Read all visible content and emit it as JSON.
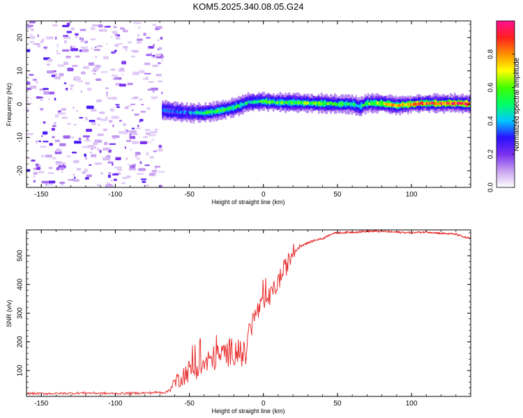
{
  "title": "KOM5.2025.340.08.05.G24",
  "colorbar": {
    "label": "Normalized spectral amplitude",
    "ticks": [
      0.0,
      0.2,
      0.4,
      0.6,
      0.8
    ],
    "tick_labels": [
      "0.0",
      "0.2",
      "0.4",
      "0.6",
      "0.8"
    ],
    "range": [
      0,
      1
    ],
    "stops": [
      "#ffffff",
      "#c8a0f0",
      "#7a30f0",
      "#2a10ff",
      "#00c8ff",
      "#00ff66",
      "#40ff00",
      "#ffff00",
      "#ff9000",
      "#ff2020",
      "#ff1090"
    ]
  },
  "chart_data": [
    {
      "type": "heatmap",
      "xlabel": "Height of straight line (km)",
      "ylabel": "Frequency (Hz)",
      "xlim": [
        -160,
        140
      ],
      "ylim": [
        -25,
        25
      ],
      "xticks": [
        -150,
        -100,
        -50,
        0,
        50,
        100
      ],
      "xtick_labels": [
        "-150",
        "-100",
        "-50",
        "0",
        "50",
        "100"
      ],
      "yticks": [
        -20,
        -10,
        0,
        10,
        20
      ],
      "ytick_labels": [
        "-20",
        "-10",
        "0",
        "10",
        "20"
      ],
      "noise_region_x": [
        -160,
        -68
      ],
      "ridge": {
        "x": [
          -68,
          -60,
          -50,
          -40,
          -30,
          -20,
          -10,
          0,
          10,
          20,
          30,
          40,
          50,
          60,
          65,
          70,
          80,
          90,
          100,
          110,
          120,
          130,
          140
        ],
        "freq": [
          -1.8,
          -2.2,
          -2.6,
          -2.6,
          -2.0,
          -1.0,
          0.6,
          0.8,
          0.5,
          0.5,
          0.3,
          0.2,
          0.0,
          0.0,
          -0.8,
          0.3,
          0.2,
          -0.4,
          0.0,
          0.3,
          0.2,
          0.3,
          0.0
        ],
        "amplitude": [
          0.35,
          0.35,
          0.4,
          0.55,
          0.6,
          0.55,
          0.5,
          0.6,
          0.6,
          0.6,
          0.65,
          0.65,
          0.6,
          0.55,
          0.5,
          0.6,
          0.75,
          0.8,
          0.85,
          0.9,
          0.95,
          0.95,
          0.9
        ]
      }
    },
    {
      "type": "line",
      "xlabel": "Height of straight line (km)",
      "ylabel": "SNR (v/v)",
      "xlim": [
        -160,
        140
      ],
      "ylim": [
        10,
        590
      ],
      "xticks": [
        -150,
        -100,
        -50,
        0,
        50,
        100
      ],
      "xtick_labels": [
        "-150",
        "-100",
        "-50",
        "0",
        "50",
        "100"
      ],
      "yticks": [
        100,
        200,
        300,
        400,
        500
      ],
      "ytick_labels": [
        "100",
        "200",
        "300",
        "400",
        "500"
      ],
      "series": [
        {
          "name": "SNR",
          "color": "#e83030",
          "x": [
            -160,
            -140,
            -120,
            -100,
            -80,
            -65,
            -60,
            -55,
            -50,
            -45,
            -40,
            -35,
            -30,
            -25,
            -20,
            -15,
            -12,
            -10,
            -5,
            0,
            5,
            10,
            15,
            20,
            25,
            30,
            35,
            40,
            45,
            50,
            60,
            70,
            80,
            90,
            100,
            110,
            120,
            130,
            135,
            140
          ],
          "values": [
            20,
            20,
            22,
            20,
            22,
            25,
            60,
            80,
            100,
            110,
            120,
            140,
            150,
            160,
            170,
            160,
            150,
            230,
            300,
            330,
            360,
            410,
            460,
            510,
            535,
            545,
            555,
            560,
            575,
            580,
            582,
            585,
            585,
            582,
            580,
            583,
            578,
            575,
            565,
            560
          ],
          "noise": [
            4,
            4,
            4,
            4,
            4,
            5,
            25,
            35,
            40,
            40,
            45,
            45,
            45,
            50,
            50,
            50,
            45,
            40,
            40,
            35,
            35,
            35,
            35,
            30,
            5,
            3,
            3,
            3,
            3,
            3,
            3,
            3,
            3,
            3,
            3,
            3,
            3,
            3,
            3,
            3
          ]
        }
      ]
    }
  ]
}
